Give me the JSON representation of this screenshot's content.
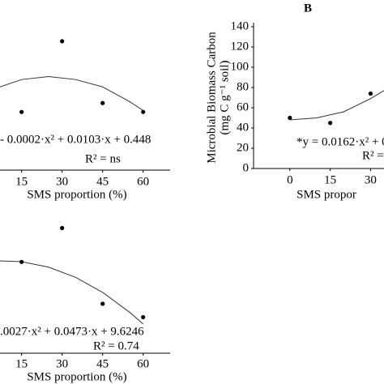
{
  "chart_data": [
    {
      "type": "scatter",
      "x": [
        15,
        30,
        45,
        60
      ],
      "values": [
        0.34,
        0.82,
        0.4,
        0.34
      ],
      "color": "#000000",
      "trendline": {
        "x": [
          7,
          15,
          25,
          35,
          45,
          55,
          60
        ],
        "values": [
          0.51,
          0.56,
          0.58,
          0.56,
          0.51,
          0.41,
          0.35
        ]
      },
      "xlim": [
        7,
        67
      ],
      "ylim": [
        0,
        1.1
      ],
      "xticks": [
        15,
        30,
        45,
        60
      ],
      "xlabel": "SMS proportion (%)",
      "equation": "- 0.0002·x² + 0.0103·x + 0.448",
      "r2": "R² = ns"
    },
    {
      "type": "scatter",
      "panel": "B",
      "x": [
        0,
        15,
        30
      ],
      "values": [
        50,
        45,
        74
      ],
      "color": "#000000",
      "trendline": {
        "x": [
          0,
          10,
          20,
          30,
          35
        ],
        "values": [
          48,
          50,
          56,
          69,
          77
        ]
      },
      "xlim": [
        -13.5,
        35
      ],
      "ylim": [
        0,
        140
      ],
      "xticks": [
        0,
        15,
        30
      ],
      "yticks": [
        0,
        20,
        40,
        60,
        80,
        100,
        120,
        140
      ],
      "xlabel": "SMS propor",
      "ylabel": [
        "Microbial Biomass Carbon",
        "(mg C g⁻¹ soil)"
      ],
      "equation": "*y = 0.0162·x² + 0",
      "r2": "R² ="
    },
    {
      "type": "scatter",
      "x": [
        15,
        30,
        45,
        60
      ],
      "values": [
        9.7,
        13.5,
        5.0,
        3.5
      ],
      "color": "#000000",
      "trendline": {
        "x": [
          7,
          15,
          25,
          35,
          45,
          55,
          60
        ],
        "values": [
          9.82,
          9.73,
          9.11,
          7.97,
          6.28,
          4.05,
          2.74
        ]
      },
      "xlim": [
        7,
        67
      ],
      "ylim": [
        0,
        14
      ],
      "xticks": [
        15,
        30,
        45,
        60
      ],
      "xlabel": "SMS proportion (%)",
      "equation": ".0027·x² + 0.0473·x + 9.6246",
      "r2": "R² = 0.74"
    }
  ]
}
